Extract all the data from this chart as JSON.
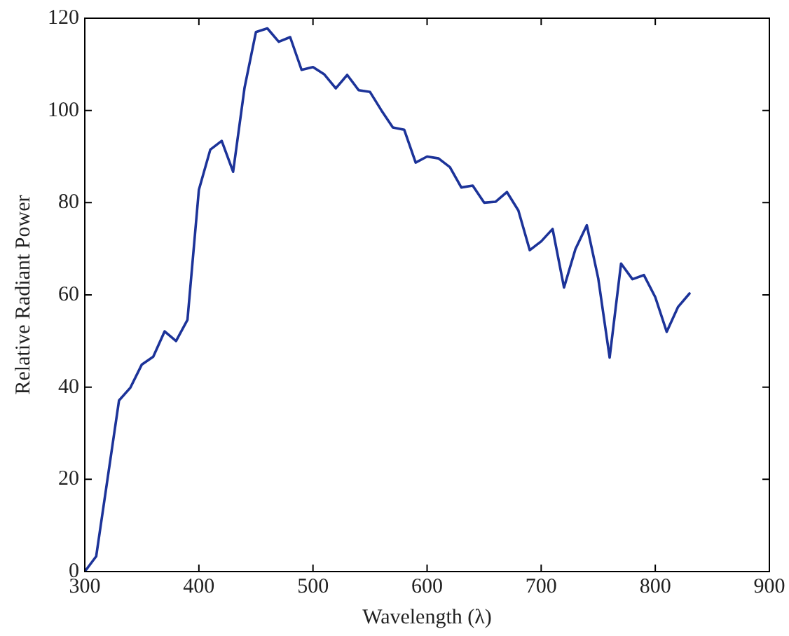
{
  "chart_data": {
    "type": "line",
    "xlabel": "Wavelength (λ)",
    "ylabel": "Relative Radiant Power",
    "x": [
      300,
      310,
      320,
      330,
      340,
      350,
      360,
      370,
      380,
      390,
      400,
      410,
      420,
      430,
      440,
      450,
      460,
      470,
      480,
      490,
      500,
      510,
      520,
      530,
      540,
      550,
      560,
      570,
      580,
      590,
      600,
      610,
      620,
      630,
      640,
      650,
      660,
      670,
      680,
      690,
      700,
      710,
      720,
      730,
      740,
      750,
      760,
      770,
      780,
      790,
      800,
      810,
      820,
      830
    ],
    "series": [
      {
        "color": "#1c3399",
        "values": [
          0.0,
          3.3,
          20.2,
          37.1,
          39.9,
          44.9,
          46.6,
          52.1,
          50.0,
          54.6,
          82.8,
          91.5,
          93.4,
          86.7,
          104.9,
          117.0,
          117.8,
          114.9,
          115.9,
          108.8,
          109.4,
          107.8,
          104.8,
          107.7,
          104.4,
          104.0,
          100.0,
          96.3,
          95.8,
          88.7,
          90.0,
          89.6,
          87.7,
          83.3,
          83.7,
          80.0,
          80.2,
          82.3,
          78.3,
          69.7,
          71.6,
          74.3,
          61.6,
          69.9,
          75.1,
          63.6,
          46.4,
          66.8,
          63.4,
          64.3,
          59.5,
          52.0,
          57.4,
          60.3
        ]
      }
    ],
    "xlim": [
      300,
      900
    ],
    "xticks": [
      300,
      400,
      500,
      600,
      700,
      800,
      900
    ],
    "ylim": [
      0,
      120
    ],
    "yticks": [
      0,
      20,
      40,
      60,
      80,
      100,
      120
    ],
    "grid": false,
    "legend": false,
    "marker": "none",
    "line_style": "solid"
  }
}
